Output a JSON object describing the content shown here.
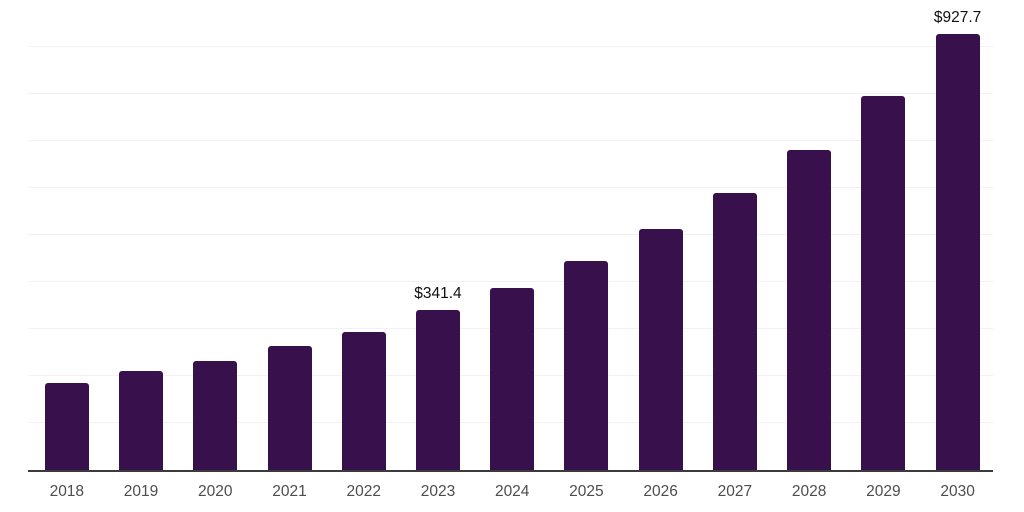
{
  "chart_data": {
    "type": "bar",
    "categories": [
      "2018",
      "2019",
      "2020",
      "2021",
      "2022",
      "2023",
      "2024",
      "2025",
      "2026",
      "2027",
      "2028",
      "2029",
      "2030"
    ],
    "values": [
      185,
      210,
      232,
      264,
      294,
      341.4,
      388,
      444,
      512,
      590,
      681,
      795,
      927.7
    ],
    "data_labels": [
      null,
      null,
      null,
      null,
      null,
      "$341.4",
      null,
      null,
      null,
      null,
      null,
      null,
      "$927.7"
    ],
    "title": "",
    "xlabel": "",
    "ylabel": "",
    "ylim": [
      0,
      1000
    ],
    "gridline_step": 100,
    "grid": "horizontal-only",
    "legend": "none",
    "y_tick_labels_visible": false,
    "colors": {
      "bar": "#38114C",
      "gridline": "#f1f1f3",
      "axis_line": "#3b3b3b",
      "x_tick_text": "#4d4d4d",
      "value_label_text": "#111111",
      "background": "#ffffff"
    }
  }
}
